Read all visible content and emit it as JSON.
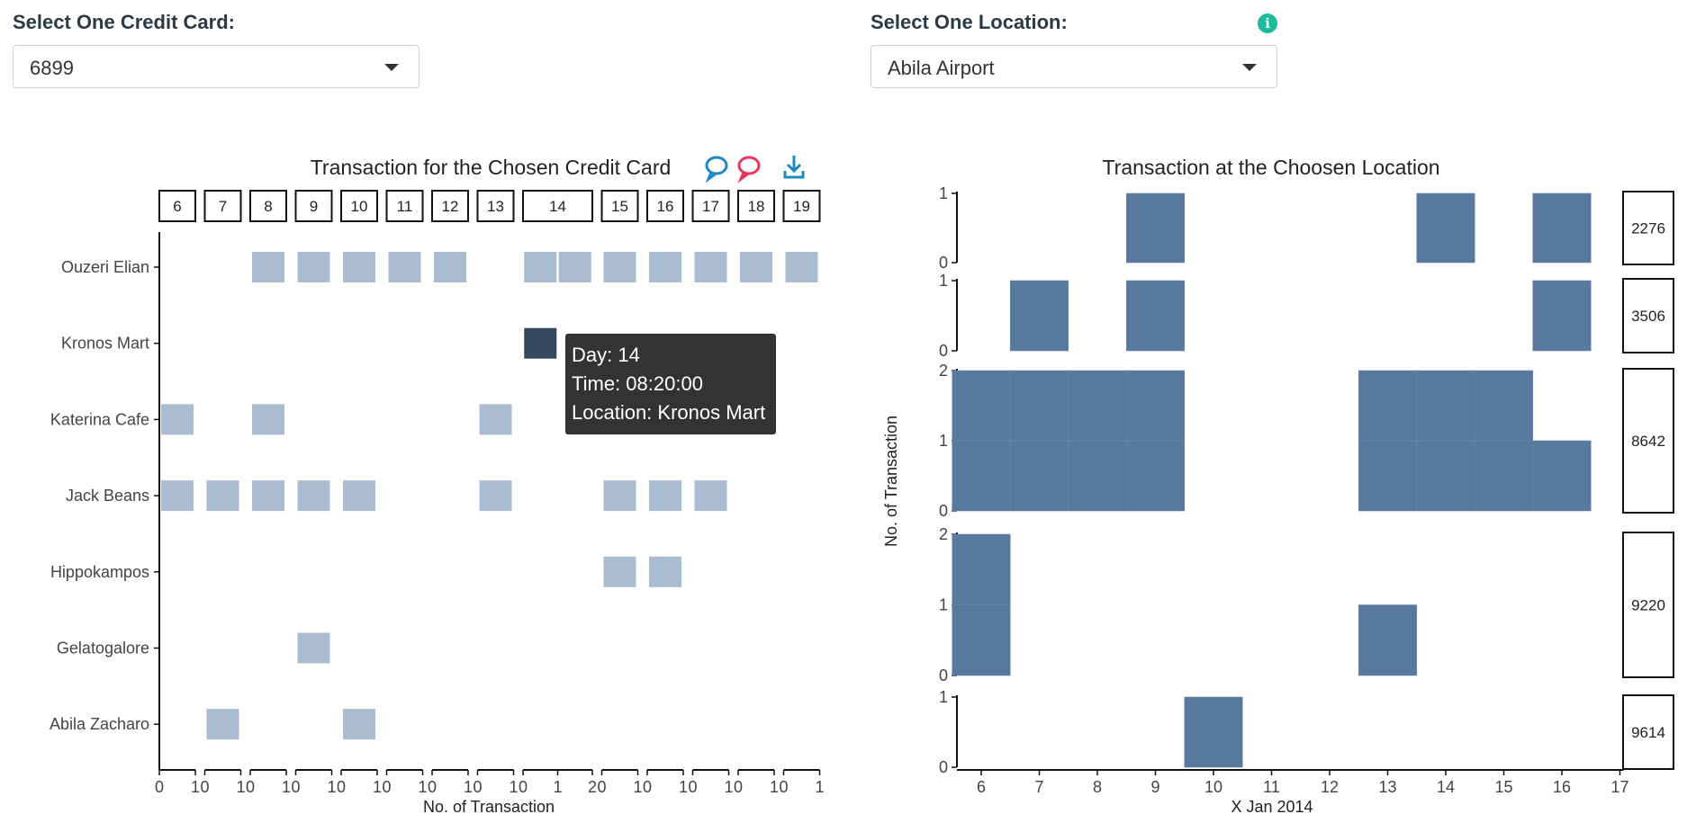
{
  "controls": {
    "card_label": "Select One Credit Card:",
    "card_value": "6899",
    "location_label": "Select One Location:",
    "location_value": "Abila Airport",
    "info_icon": "info-circle-icon"
  },
  "toolbar_icons": [
    "speech-bubble-blue-icon",
    "speech-bubble-red-icon",
    "download-icon"
  ],
  "tooltip": {
    "day": "Day: 14",
    "time": "Time: 08:20:00",
    "location": "Location: Kronos Mart"
  },
  "colors": {
    "tile": "#aabccf",
    "tile_highlight": "#34495e",
    "bar": "#58799d",
    "tooltip_bg": "#333333"
  },
  "chart_data": [
    {
      "type": "heatmap",
      "title": "Transaction for the Chosen Credit Card",
      "xlabel": "No. of Transaction",
      "facets": [
        "6",
        "7",
        "8",
        "9",
        "10",
        "11",
        "12",
        "13",
        "14",
        "15",
        "16",
        "17",
        "18",
        "19"
      ],
      "facet_tick_labels": [
        [
          "0",
          "1"
        ],
        [
          "0",
          "1"
        ],
        [
          "0",
          "1"
        ],
        [
          "0",
          "1"
        ],
        [
          "0",
          "1"
        ],
        [
          "0",
          "1"
        ],
        [
          "0",
          "1"
        ],
        [
          "0",
          "1"
        ],
        [
          "0",
          "1",
          "2"
        ],
        [
          "0",
          "1"
        ],
        [
          "0",
          "1"
        ],
        [
          "0",
          "1"
        ],
        [
          "0",
          "1"
        ],
        [
          "0",
          "1"
        ]
      ],
      "locations": [
        "Ouzeri Elian",
        "Kronos Mart",
        "Katerina Cafe",
        "Jack Beans",
        "Hippokampos",
        "Gelatogalore",
        "Abila Zacharo"
      ],
      "tiles": [
        {
          "location": "Ouzeri Elian",
          "day": 8,
          "n": 1
        },
        {
          "location": "Ouzeri Elian",
          "day": 9,
          "n": 1
        },
        {
          "location": "Ouzeri Elian",
          "day": 10,
          "n": 1
        },
        {
          "location": "Ouzeri Elian",
          "day": 11,
          "n": 1
        },
        {
          "location": "Ouzeri Elian",
          "day": 12,
          "n": 1
        },
        {
          "location": "Ouzeri Elian",
          "day": 14,
          "n": 1
        },
        {
          "location": "Ouzeri Elian",
          "day": 14,
          "n": 2
        },
        {
          "location": "Ouzeri Elian",
          "day": 15,
          "n": 1
        },
        {
          "location": "Ouzeri Elian",
          "day": 16,
          "n": 1
        },
        {
          "location": "Ouzeri Elian",
          "day": 17,
          "n": 1
        },
        {
          "location": "Ouzeri Elian",
          "day": 18,
          "n": 1
        },
        {
          "location": "Ouzeri Elian",
          "day": 19,
          "n": 1
        },
        {
          "location": "Kronos Mart",
          "day": 14,
          "n": 1,
          "highlight": true
        },
        {
          "location": "Katerina Cafe",
          "day": 6,
          "n": 1
        },
        {
          "location": "Katerina Cafe",
          "day": 8,
          "n": 1
        },
        {
          "location": "Katerina Cafe",
          "day": 13,
          "n": 1
        },
        {
          "location": "Jack Beans",
          "day": 6,
          "n": 1
        },
        {
          "location": "Jack Beans",
          "day": 7,
          "n": 1
        },
        {
          "location": "Jack Beans",
          "day": 8,
          "n": 1
        },
        {
          "location": "Jack Beans",
          "day": 9,
          "n": 1
        },
        {
          "location": "Jack Beans",
          "day": 10,
          "n": 1
        },
        {
          "location": "Jack Beans",
          "day": 13,
          "n": 1
        },
        {
          "location": "Jack Beans",
          "day": 15,
          "n": 1
        },
        {
          "location": "Jack Beans",
          "day": 16,
          "n": 1
        },
        {
          "location": "Jack Beans",
          "day": 17,
          "n": 1
        },
        {
          "location": "Hippokampos",
          "day": 15,
          "n": 1
        },
        {
          "location": "Hippokampos",
          "day": 16,
          "n": 1
        },
        {
          "location": "Gelatogalore",
          "day": 9,
          "n": 1
        },
        {
          "location": "Abila Zacharo",
          "day": 7,
          "n": 1
        },
        {
          "location": "Abila Zacharo",
          "day": 10,
          "n": 1
        }
      ]
    },
    {
      "type": "bar",
      "title": "Transaction at the Choosen Location",
      "xlabel": "X Jan 2014",
      "ylabel": "No. of Transaction",
      "x_ticks": [
        6,
        7,
        8,
        9,
        10,
        11,
        12,
        13,
        14,
        15,
        16,
        17
      ],
      "xlim": [
        5,
        17
      ],
      "panels": [
        {
          "card": "2276",
          "ylim": [
            0,
            1
          ],
          "y_ticks": [
            0,
            1
          ],
          "values": [
            {
              "day": 9,
              "n": 1
            },
            {
              "day": 14,
              "n": 1
            },
            {
              "day": 16,
              "n": 1
            }
          ]
        },
        {
          "card": "3506",
          "ylim": [
            0,
            1
          ],
          "y_ticks": [
            0,
            1
          ],
          "values": [
            {
              "day": 7,
              "n": 1
            },
            {
              "day": 9,
              "n": 1
            },
            {
              "day": 16,
              "n": 1
            }
          ]
        },
        {
          "card": "8642",
          "ylim": [
            0,
            2
          ],
          "y_ticks": [
            0,
            1,
            2
          ],
          "values": [
            {
              "day": 6,
              "n": 2
            },
            {
              "day": 7,
              "n": 2
            },
            {
              "day": 8,
              "n": 2
            },
            {
              "day": 9,
              "n": 2
            },
            {
              "day": 13,
              "n": 2
            },
            {
              "day": 14,
              "n": 2
            },
            {
              "day": 15,
              "n": 2
            },
            {
              "day": 16,
              "n": 1
            }
          ]
        },
        {
          "card": "9220",
          "ylim": [
            0,
            2
          ],
          "y_ticks": [
            0,
            1,
            2
          ],
          "values": [
            {
              "day": 6,
              "n": 2
            },
            {
              "day": 13,
              "n": 1
            }
          ]
        },
        {
          "card": "9614",
          "ylim": [
            0,
            1
          ],
          "y_ticks": [
            0,
            1
          ],
          "values": [
            {
              "day": 10,
              "n": 1
            }
          ]
        }
      ]
    }
  ]
}
